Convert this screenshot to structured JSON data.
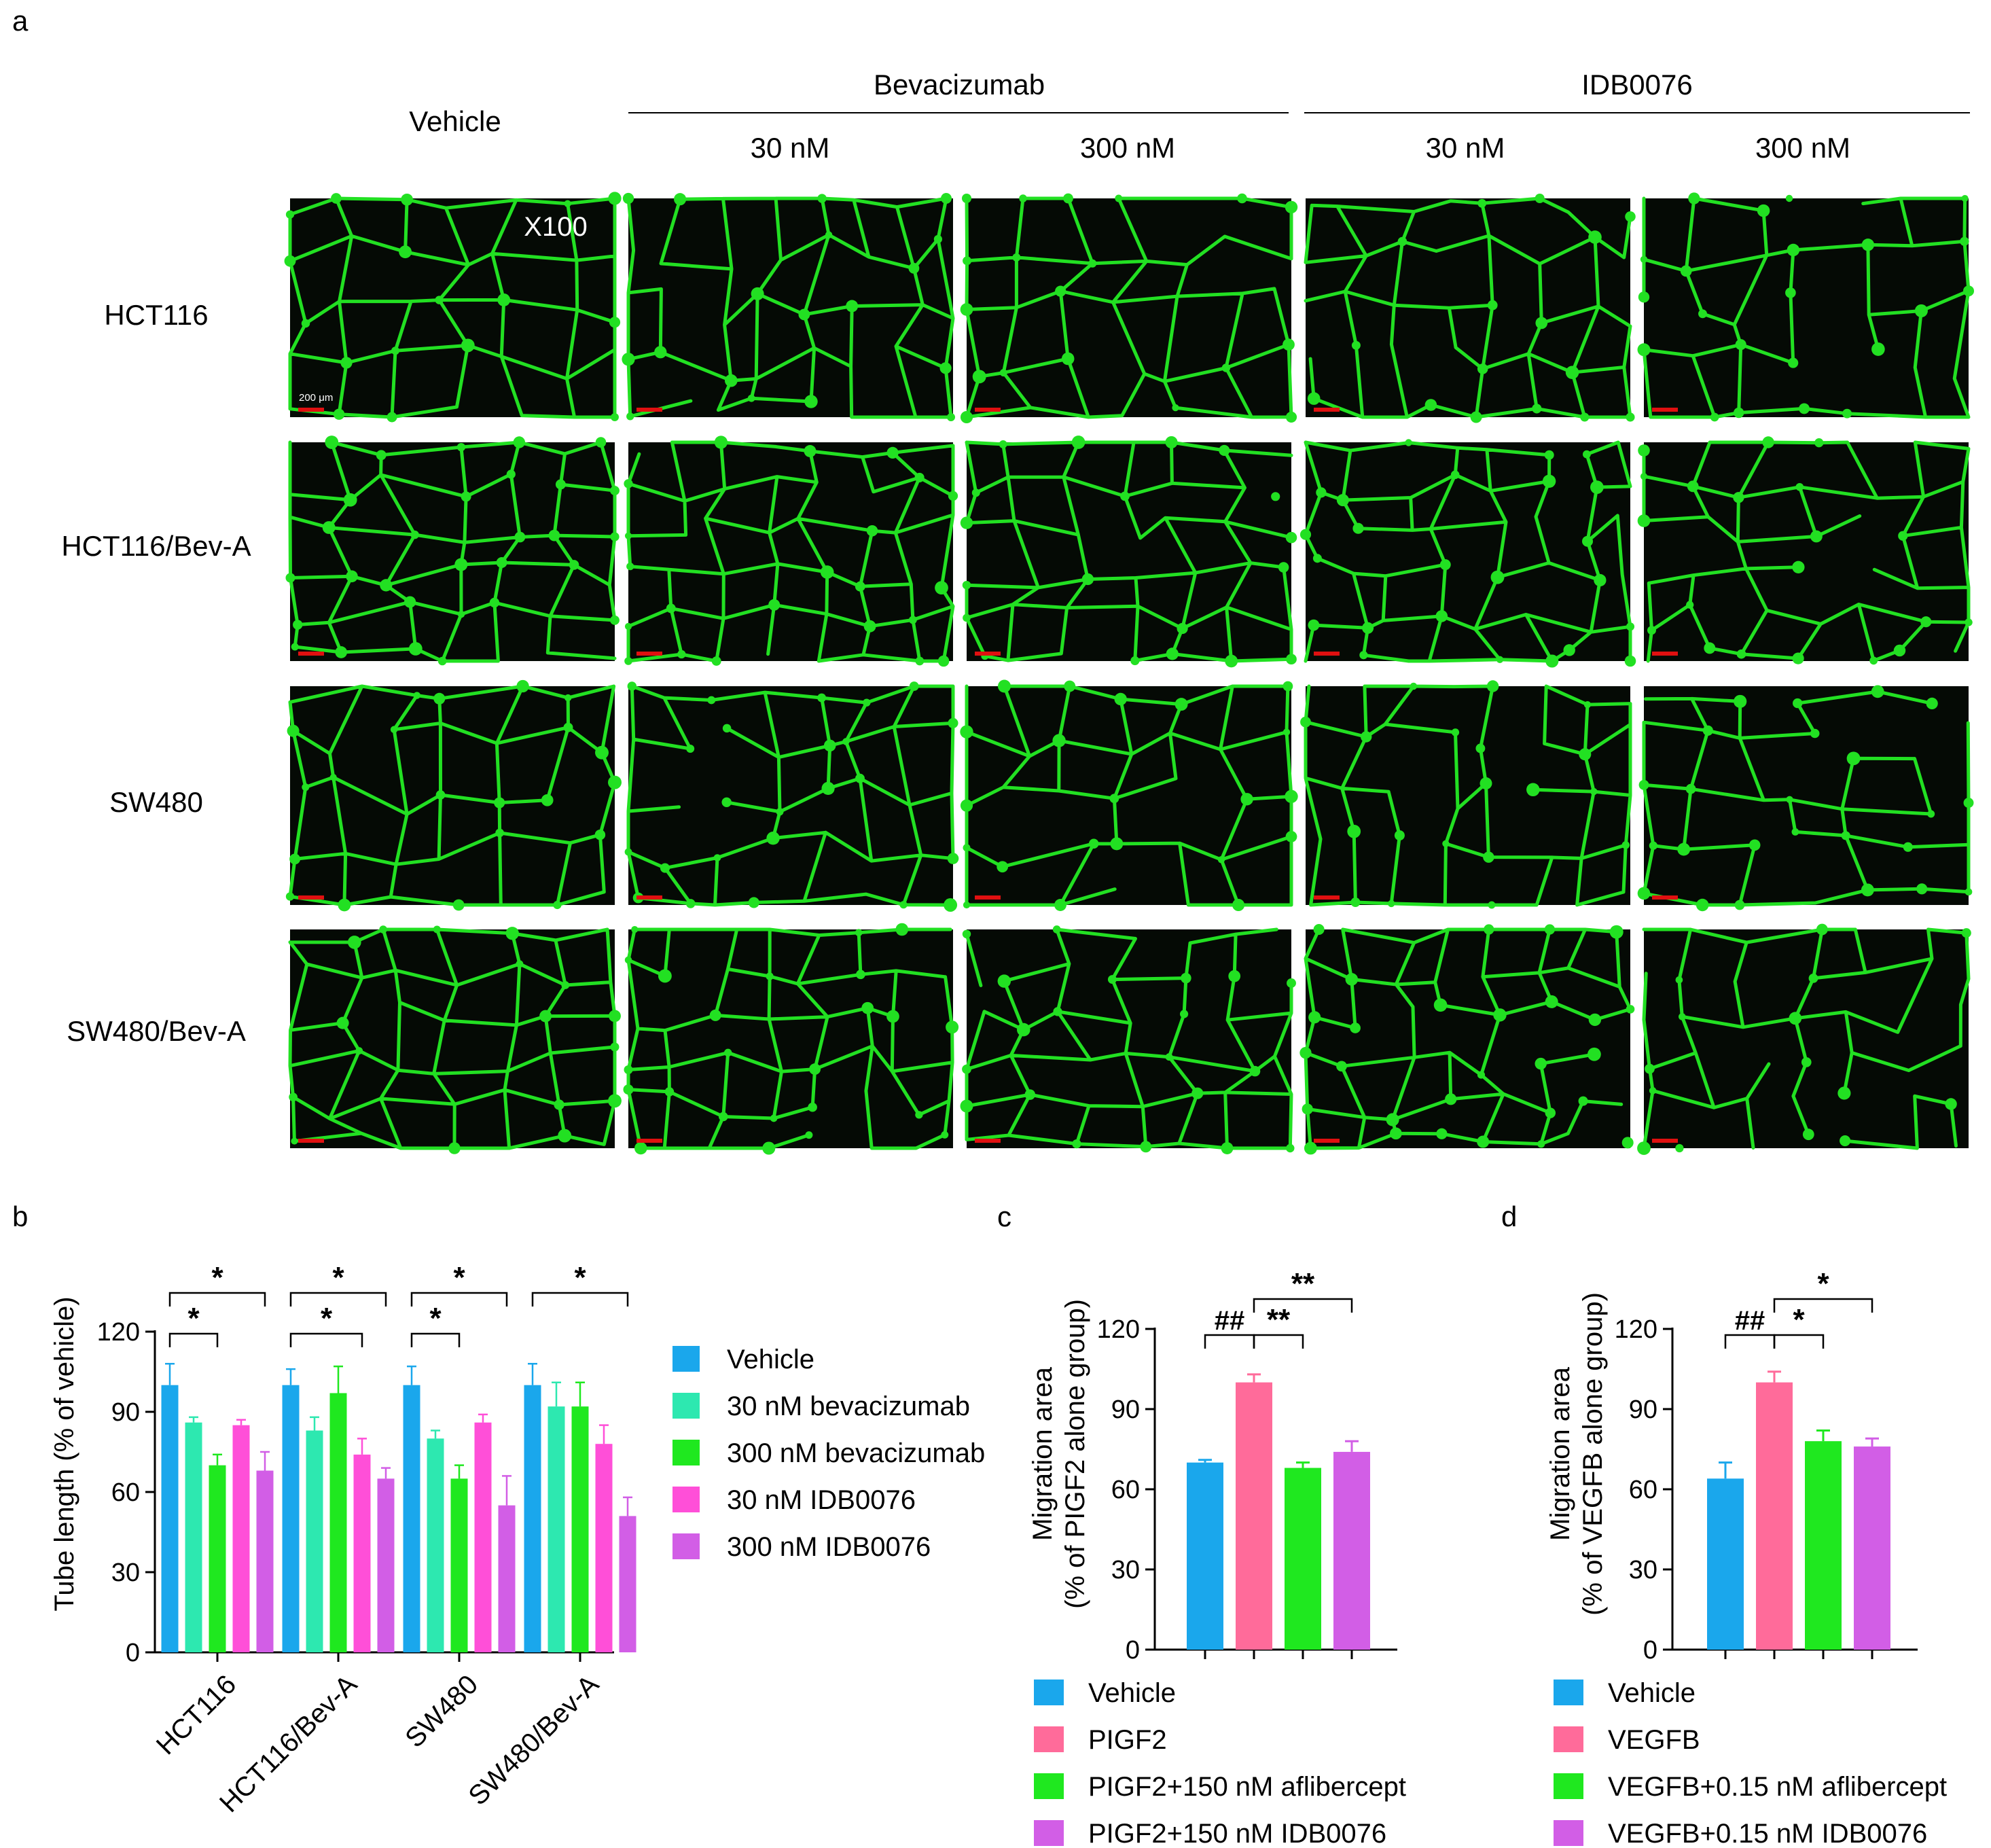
{
  "panel_letters": {
    "a": "a",
    "b": "b",
    "c": "c",
    "d": "d"
  },
  "panel_a": {
    "vehicle_label": "Vehicle",
    "group_headers": [
      "Bevacizumab",
      "IDB0076"
    ],
    "doses": [
      "30 nM",
      "300 nM",
      "30 nM",
      "300 nM"
    ],
    "row_labels": [
      "HCT116",
      "HCT116/Bev-A",
      "SW480",
      "SW480/Bev-A"
    ],
    "magnification": "X100",
    "scale_bar_label": "200 μm",
    "colors": {
      "background": "#050a05",
      "network": "#22e022",
      "scale_bar": "#e01010"
    }
  },
  "chart_data": [
    {
      "id": "b",
      "type": "bar",
      "ylabel": "Tube length (% of vehicle)",
      "ylim": [
        0,
        120
      ],
      "yticks": [
        0,
        30,
        60,
        90,
        120
      ],
      "categories": [
        "HCT116",
        "HCT116/Bev-A",
        "SW480",
        "SW480/Bev-A"
      ],
      "series": [
        {
          "name": "Vehicle",
          "color": "#1aa7ec",
          "values": [
            100,
            100,
            100,
            100
          ],
          "errors": [
            8,
            6,
            7,
            8
          ]
        },
        {
          "name": "30 nM bevacizumab",
          "color": "#2de8b0",
          "values": [
            86,
            83,
            80,
            92
          ],
          "errors": [
            2,
            5,
            3,
            9
          ]
        },
        {
          "name": "300 nM bevacizumab",
          "color": "#1fe81f",
          "values": [
            70,
            97,
            65,
            92
          ],
          "errors": [
            4,
            10,
            5,
            9
          ]
        },
        {
          "name": "30 nM IDB0076",
          "color": "#ff4fd8",
          "values": [
            85,
            74,
            86,
            78
          ],
          "errors": [
            2,
            6,
            3,
            7
          ]
        },
        {
          "name": "300 nM IDB0076",
          "color": "#d25ee6",
          "values": [
            68,
            65,
            55,
            51
          ],
          "errors": [
            7,
            4,
            11,
            7
          ]
        }
      ],
      "significance": [
        {
          "group": 0,
          "from": 0,
          "to": 2,
          "label": "*",
          "level": 1
        },
        {
          "group": 0,
          "from": 0,
          "to": 4,
          "label": "*",
          "level": 2
        },
        {
          "group": 1,
          "from": 0,
          "to": 3,
          "label": "*",
          "level": 1
        },
        {
          "group": 1,
          "from": 0,
          "to": 4,
          "label": "*",
          "level": 2
        },
        {
          "group": 2,
          "from": 0,
          "to": 2,
          "label": "*",
          "level": 1
        },
        {
          "group": 2,
          "from": 0,
          "to": 4,
          "label": "*",
          "level": 2
        },
        {
          "group": 3,
          "from": 0,
          "to": 4,
          "label": "*",
          "level": 2
        }
      ]
    },
    {
      "id": "c",
      "type": "bar",
      "ylabel": [
        "Migration area",
        "(% of PIGF2 alone group)"
      ],
      "ylim": [
        0,
        120
      ],
      "yticks": [
        0,
        30,
        60,
        90,
        120
      ],
      "categories": [
        "Vehicle",
        "PIGF2",
        "PIGF2+150 nM aflibercept",
        "PIGF2+150 nM IDB0076"
      ],
      "colors": [
        "#1aa7ec",
        "#ff6b9a",
        "#1fe81f",
        "#d25ee6"
      ],
      "values": [
        70,
        100,
        68,
        74
      ],
      "errors": [
        1,
        3,
        2,
        4
      ],
      "significance": [
        {
          "from": 0,
          "to": 1,
          "label": "##",
          "level": 1
        },
        {
          "from": 1,
          "to": 2,
          "label": "**",
          "level": 1
        },
        {
          "from": 1,
          "to": 3,
          "label": "**",
          "level": 2
        }
      ]
    },
    {
      "id": "d",
      "type": "bar",
      "ylabel": [
        "Migration area",
        "(% of VEGFB alone group)"
      ],
      "ylim": [
        0,
        120
      ],
      "yticks": [
        0,
        30,
        60,
        90,
        120
      ],
      "categories": [
        "Vehicle",
        "VEGFB",
        "VEGFB+0.15 nM aflibercept",
        "VEGFB+0.15 nM IDB0076"
      ],
      "colors": [
        "#1aa7ec",
        "#ff6b9a",
        "#1fe81f",
        "#d25ee6"
      ],
      "values": [
        64,
        100,
        78,
        76
      ],
      "errors": [
        6,
        4,
        4,
        3
      ],
      "significance": [
        {
          "from": 0,
          "to": 1,
          "label": "##",
          "level": 1
        },
        {
          "from": 1,
          "to": 2,
          "label": "*",
          "level": 1
        },
        {
          "from": 1,
          "to": 3,
          "label": "*",
          "level": 2
        }
      ]
    }
  ]
}
